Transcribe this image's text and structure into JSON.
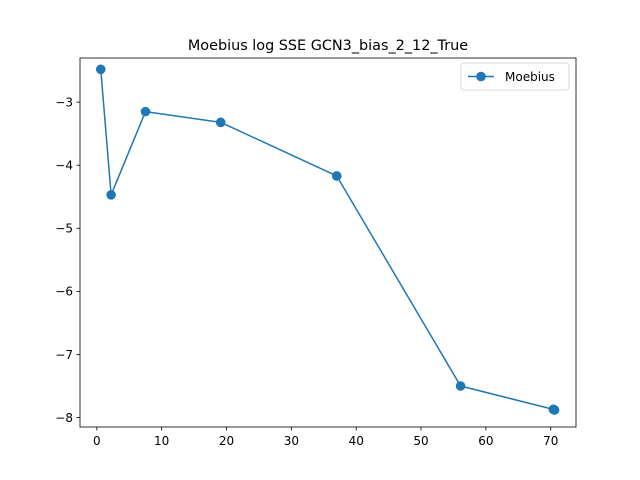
{
  "chart_data": {
    "type": "line",
    "title": "Moebius log SSE GCN3_bias_2_12_True",
    "xlabel": "",
    "ylabel": "",
    "xlim": [
      -2.6,
      73.9
    ],
    "ylim": [
      -8.15,
      -2.3
    ],
    "xticks": [
      0,
      10,
      20,
      30,
      40,
      50,
      60,
      70
    ],
    "xtick_labels": [
      "0",
      "10",
      "20",
      "30",
      "40",
      "50",
      "60",
      "70"
    ],
    "yticks": [
      -8,
      -7,
      -6,
      -5,
      -4,
      -3
    ],
    "ytick_labels": [
      "−8",
      "−7",
      "−6",
      "−5",
      "−4",
      "−3"
    ],
    "grid": false,
    "legend_position": "top-right",
    "series": [
      {
        "name": "Moebius",
        "color": "#1f77b4",
        "marker": "circle",
        "x": [
          0.6,
          2.2,
          7.5,
          19.1,
          37.0,
          56.1,
          70.4,
          70.6
        ],
        "y": [
          -2.48,
          -4.47,
          -3.15,
          -3.32,
          -4.17,
          -7.5,
          -7.87,
          -7.88
        ]
      }
    ]
  }
}
